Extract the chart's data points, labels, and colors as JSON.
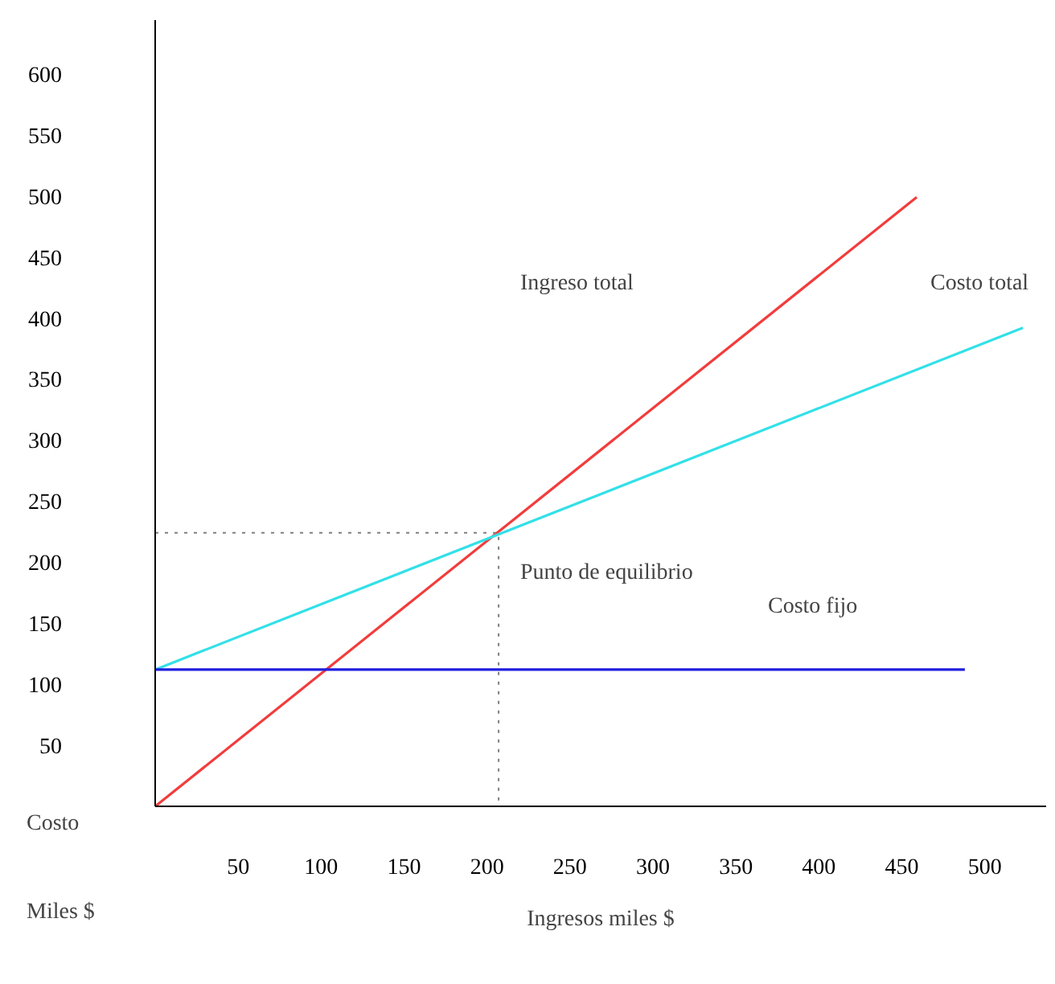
{
  "chart_data": {
    "type": "line",
    "xlabel": "Ingresos miles $",
    "ylabel": "Costo\nMiles $",
    "xlim": [
      0,
      537
    ],
    "ylim": [
      0,
      644
    ],
    "xticks": [
      50,
      100,
      150,
      200,
      250,
      300,
      350,
      400,
      450,
      500
    ],
    "yticks": [
      50,
      100,
      150,
      200,
      250,
      300,
      350,
      400,
      450,
      500,
      550,
      600
    ],
    "grid": false,
    "series": [
      {
        "color": "#f23c3c",
        "x": [
          0,
          459
        ],
        "values": [
          0,
          499
        ]
      },
      {
        "color": "#33e0e8",
        "x": [
          0,
          523
        ],
        "values": [
          112,
          392
        ]
      },
      {
        "color": "#1f1fe0",
        "x": [
          0,
          488
        ],
        "values": [
          112,
          112
        ]
      },
      {
        "color": "#808080",
        "x": [
          0,
          207,
          207
        ],
        "values": [
          224,
          224,
          0
        ],
        "line_style": "dotted"
      }
    ],
    "annotations": [
      "Ingreso total",
      "Costo total",
      "Punto de equilibrio",
      "Costo fijo"
    ]
  }
}
